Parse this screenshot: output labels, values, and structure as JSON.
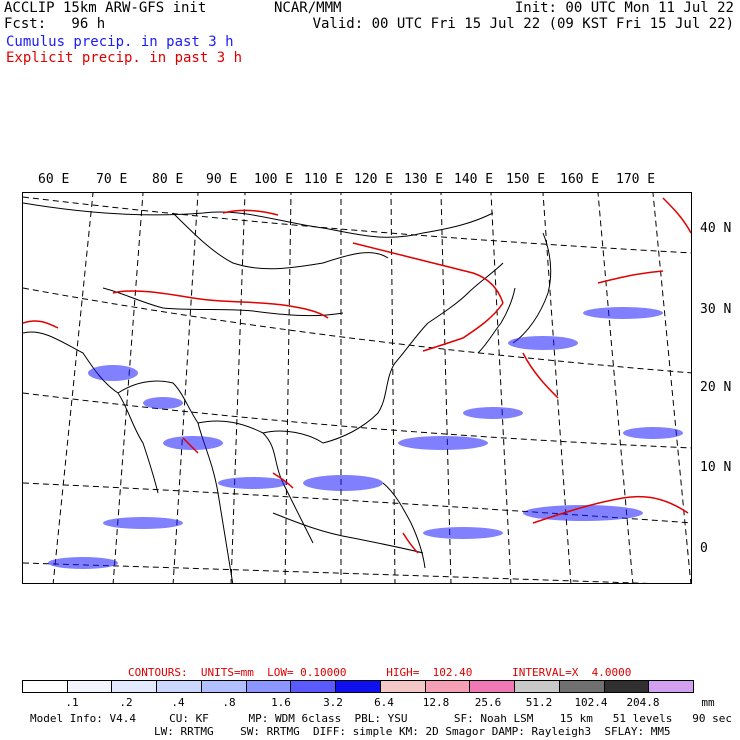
{
  "header": {
    "left_line1": "ACCLIP 15km ARW-GFS init",
    "left_line2": "Fcst:   96 h",
    "center": "NCAR/MMM",
    "right_line1": "Init: 00 UTC Mon 11 Jul 22",
    "right_line2": "Valid: 00 UTC Fri 15 Jul 22 (09 KST Fri 15 Jul 22)",
    "legend_cumulus": "Cumulus precip. in past 3 h",
    "legend_explicit": "Explicit precip. in past 3 h"
  },
  "colors": {
    "cumulus": "#1a1aff",
    "explicit": "#e00000",
    "coast": "#000000"
  },
  "map": {
    "lon_labels": [
      "60 E",
      "70 E",
      "80 E",
      "90 E",
      "100 E",
      "110 E",
      "120 E",
      "130 E",
      "140 E",
      "150 E",
      "160 E",
      "170 E"
    ],
    "lat_labels": [
      "40 N",
      "30 N",
      "20 N",
      "10 N",
      "0"
    ]
  },
  "contours": {
    "text": "CONTOURS:  UNITS=mm  LOW= 0.10000      HIGH=  102.40      INTERVAL=X  4.0000"
  },
  "scale": {
    "colors": [
      "#ffffff",
      "#f2f5ff",
      "#e3eaff",
      "#ccd7ff",
      "#b3c0ff",
      "#8c96ff",
      "#5a5aff",
      "#1010ee",
      "#f5c8c8",
      "#f5a0b4",
      "#f078b4",
      "#c8c8c8",
      "#707070",
      "#303030",
      "#d2a0f0"
    ],
    "ticks": [
      ".1",
      ".2",
      ".4",
      ".8",
      "1.6",
      "3.2",
      "6.4",
      "12.8",
      "25.6",
      "51.2",
      "102.4",
      "204.8"
    ],
    "unit": "mm"
  },
  "footer": {
    "line1": "Model Info: V4.4     CU: KF      MP: WDM 6class  PBL: YSU       SF: Noah LSM    15 km   51 levels   90 sec",
    "line2": "LW: RRTMG    SW: RRTMG  DIFF: simple KM: 2D Smagor DAMP: Rayleigh3  SFLAY: MM5"
  }
}
